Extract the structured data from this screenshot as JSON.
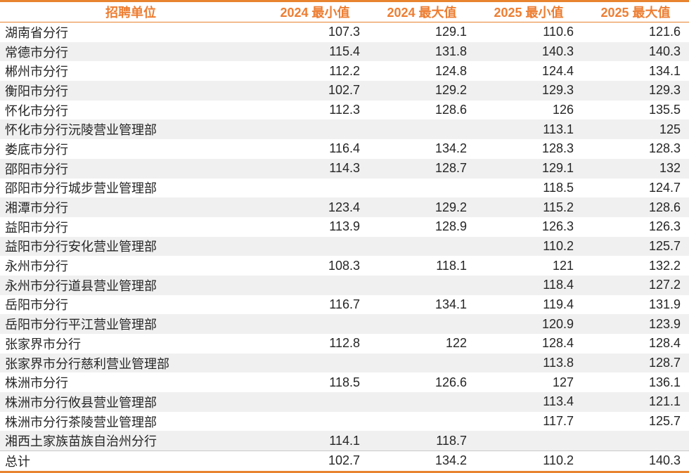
{
  "colors": {
    "accent_orange": "#ED7D31",
    "border_orange": "#E8832F",
    "row_alt_gray": "#F0F0F0",
    "text_dark": "#262626",
    "total_separator_gray": "#C9C9C9"
  },
  "table": {
    "columns": [
      "招聘单位",
      "2024 最小值",
      "2024 最大值",
      "2025 最小值",
      "2025 最大值"
    ],
    "rows": [
      [
        "湖南省分行",
        "107.3",
        "129.1",
        "110.6",
        "121.6"
      ],
      [
        "常德市分行",
        "115.4",
        "131.8",
        "140.3",
        "140.3"
      ],
      [
        "郴州市分行",
        "112.2",
        "124.8",
        "124.4",
        "134.1"
      ],
      [
        "衡阳市分行",
        "102.7",
        "129.2",
        "129.3",
        "129.3"
      ],
      [
        "怀化市分行",
        "112.3",
        "128.6",
        "126",
        "135.5"
      ],
      [
        "怀化市分行沅陵营业管理部",
        "",
        "",
        "113.1",
        "125"
      ],
      [
        "娄底市分行",
        "116.4",
        "134.2",
        "128.3",
        "128.3"
      ],
      [
        "邵阳市分行",
        "114.3",
        "128.7",
        "129.1",
        "132"
      ],
      [
        "邵阳市分行城步营业管理部",
        "",
        "",
        "118.5",
        "124.7"
      ],
      [
        "湘潭市分行",
        "123.4",
        "129.2",
        "115.2",
        "128.6"
      ],
      [
        "益阳市分行",
        "113.9",
        "128.9",
        "126.3",
        "126.3"
      ],
      [
        "益阳市分行安化营业管理部",
        "",
        "",
        "110.2",
        "125.7"
      ],
      [
        "永州市分行",
        "108.3",
        "118.1",
        "121",
        "132.2"
      ],
      [
        "永州市分行道县营业管理部",
        "",
        "",
        "118.4",
        "127.2"
      ],
      [
        "岳阳市分行",
        "116.7",
        "134.1",
        "119.4",
        "131.9"
      ],
      [
        "岳阳市分行平江营业管理部",
        "",
        "",
        "120.9",
        "123.9"
      ],
      [
        "张家界市分行",
        "112.8",
        "122",
        "128.4",
        "128.4"
      ],
      [
        "张家界市分行慈利营业管理部",
        "",
        "",
        "113.8",
        "128.7"
      ],
      [
        "株洲市分行",
        "118.5",
        "126.6",
        "127",
        "136.1"
      ],
      [
        "株洲市分行攸县营业管理部",
        "",
        "",
        "113.4",
        "121.1"
      ],
      [
        "株洲市分行茶陵营业管理部",
        "",
        "",
        "117.7",
        "125.7"
      ],
      [
        "湘西土家族苗族自治州分行",
        "114.1",
        "118.7",
        "",
        ""
      ],
      [
        "总计",
        "102.7",
        "134.2",
        "110.2",
        "140.3"
      ]
    ]
  },
  "chart_data": {
    "type": "table",
    "title": "",
    "columns": [
      "招聘单位",
      "2024 最小值",
      "2024 最大值",
      "2025 最小值",
      "2025 最大值"
    ],
    "rows": [
      [
        "湖南省分行",
        107.3,
        129.1,
        110.6,
        121.6
      ],
      [
        "常德市分行",
        115.4,
        131.8,
        140.3,
        140.3
      ],
      [
        "郴州市分行",
        112.2,
        124.8,
        124.4,
        134.1
      ],
      [
        "衡阳市分行",
        102.7,
        129.2,
        129.3,
        129.3
      ],
      [
        "怀化市分行",
        112.3,
        128.6,
        126,
        135.5
      ],
      [
        "怀化市分行沅陵营业管理部",
        null,
        null,
        113.1,
        125
      ],
      [
        "娄底市分行",
        116.4,
        134.2,
        128.3,
        128.3
      ],
      [
        "邵阳市分行",
        114.3,
        128.7,
        129.1,
        132
      ],
      [
        "邵阳市分行城步营业管理部",
        null,
        null,
        118.5,
        124.7
      ],
      [
        "湘潭市分行",
        123.4,
        129.2,
        115.2,
        128.6
      ],
      [
        "益阳市分行",
        113.9,
        128.9,
        126.3,
        126.3
      ],
      [
        "益阳市分行安化营业管理部",
        null,
        null,
        110.2,
        125.7
      ],
      [
        "永州市分行",
        108.3,
        118.1,
        121,
        132.2
      ],
      [
        "永州市分行道县营业管理部",
        null,
        null,
        118.4,
        127.2
      ],
      [
        "岳阳市分行",
        116.7,
        134.1,
        119.4,
        131.9
      ],
      [
        "岳阳市分行平江营业管理部",
        null,
        null,
        120.9,
        123.9
      ],
      [
        "张家界市分行",
        112.8,
        122,
        128.4,
        128.4
      ],
      [
        "张家界市分行慈利营业管理部",
        null,
        null,
        113.8,
        128.7
      ],
      [
        "株洲市分行",
        118.5,
        126.6,
        127,
        136.1
      ],
      [
        "株洲市分行攸县营业管理部",
        null,
        null,
        113.4,
        121.1
      ],
      [
        "株洲市分行茶陵营业管理部",
        null,
        null,
        117.7,
        125.7
      ],
      [
        "湘西土家族苗族自治州分行",
        114.1,
        118.7,
        null,
        null
      ],
      [
        "总计",
        102.7,
        134.2,
        110.2,
        140.3
      ]
    ]
  }
}
